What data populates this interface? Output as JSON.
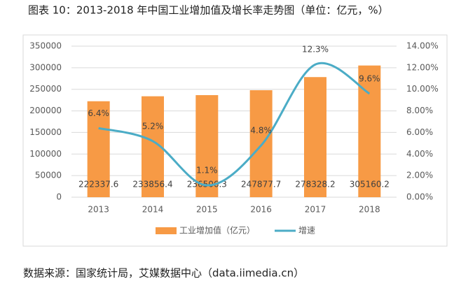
{
  "chart_data": {
    "type": "bar",
    "title": "图表 10：2013-2018 年中国工业增加值及增长率走势图（单位：亿元，%）",
    "categories": [
      "2013",
      "2014",
      "2015",
      "2016",
      "2017",
      "2018"
    ],
    "series": [
      {
        "name": "工业增加值（亿元）",
        "type": "bar",
        "color": "#f79a45",
        "values": [
          222337.6,
          233856.4,
          236506.3,
          247877.7,
          278328.2,
          305160.2
        ]
      },
      {
        "name": "增速",
        "type": "line",
        "axis": "y2",
        "color": "#4bacc6",
        "values": [
          6.4,
          5.2,
          1.1,
          4.8,
          12.3,
          9.6
        ],
        "value_labels": [
          "6.4%",
          "5.2%",
          "1.1%",
          "4.8%",
          "12.3%",
          "9.6%"
        ]
      }
    ],
    "ylim": [
      0,
      350000
    ],
    "yticks": [
      0,
      50000,
      100000,
      150000,
      200000,
      250000,
      300000,
      350000
    ],
    "y2lim": [
      0,
      14
    ],
    "y2ticks": [
      {
        "value": 0,
        "label": "0.00%"
      },
      {
        "value": 2,
        "label": "2.00%"
      },
      {
        "value": 4,
        "label": "4.00%"
      },
      {
        "value": 6,
        "label": "6.00%"
      },
      {
        "value": 8,
        "label": "8.00%"
      },
      {
        "value": 10,
        "label": "10.00%"
      },
      {
        "value": 12,
        "label": "12.00%"
      },
      {
        "value": 14,
        "label": "14.00%"
      }
    ],
    "grid": true,
    "legend": "bottom",
    "source": "数据来源：国家统计局，艾媒数据中心（data.iimedia.cn）"
  }
}
